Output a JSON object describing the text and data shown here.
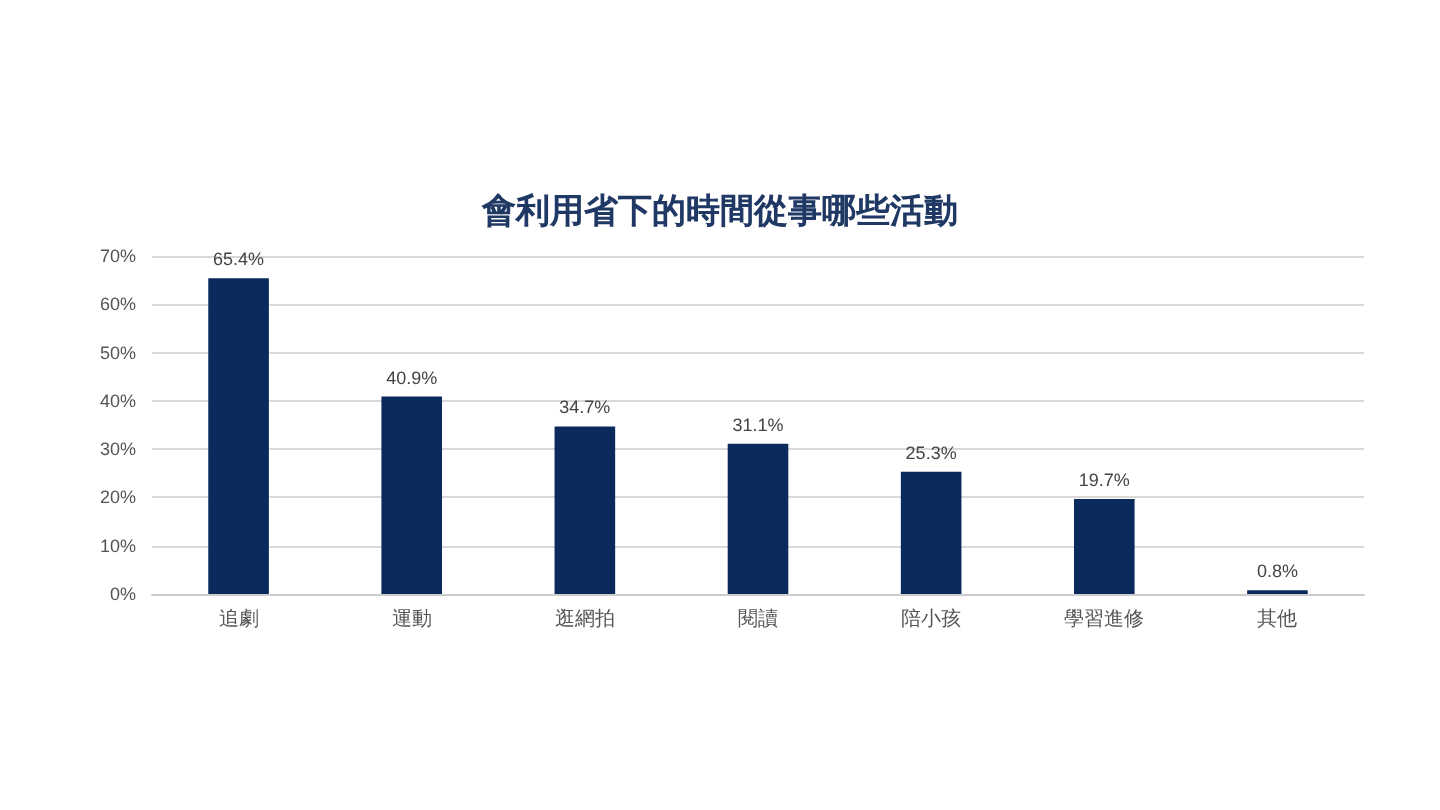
{
  "chart_data": {
    "type": "bar",
    "title": "會利用省下的時間從事哪些活動",
    "categories": [
      "追劇",
      "運動",
      "逛網拍",
      "閱讀",
      "陪小孩",
      "學習進修",
      "其他"
    ],
    "values": [
      65.4,
      40.9,
      34.7,
      31.1,
      25.3,
      19.7,
      0.8
    ],
    "value_labels": [
      "65.4%",
      "40.9%",
      "34.7%",
      "31.1%",
      "25.3%",
      "19.7%",
      "0.8%"
    ],
    "color": "#0b2a5c",
    "ylim": [
      0,
      70
    ],
    "yticks": [
      {
        "value": 0,
        "label": "0%"
      },
      {
        "value": 10,
        "label": "10%"
      },
      {
        "value": 20,
        "label": "20%"
      },
      {
        "value": 30,
        "label": "30%"
      },
      {
        "value": 40,
        "label": "40%"
      },
      {
        "value": 50,
        "label": "50%"
      },
      {
        "value": 60,
        "label": "60%"
      },
      {
        "value": 70,
        "label": "70%"
      }
    ],
    "grid": "y"
  }
}
